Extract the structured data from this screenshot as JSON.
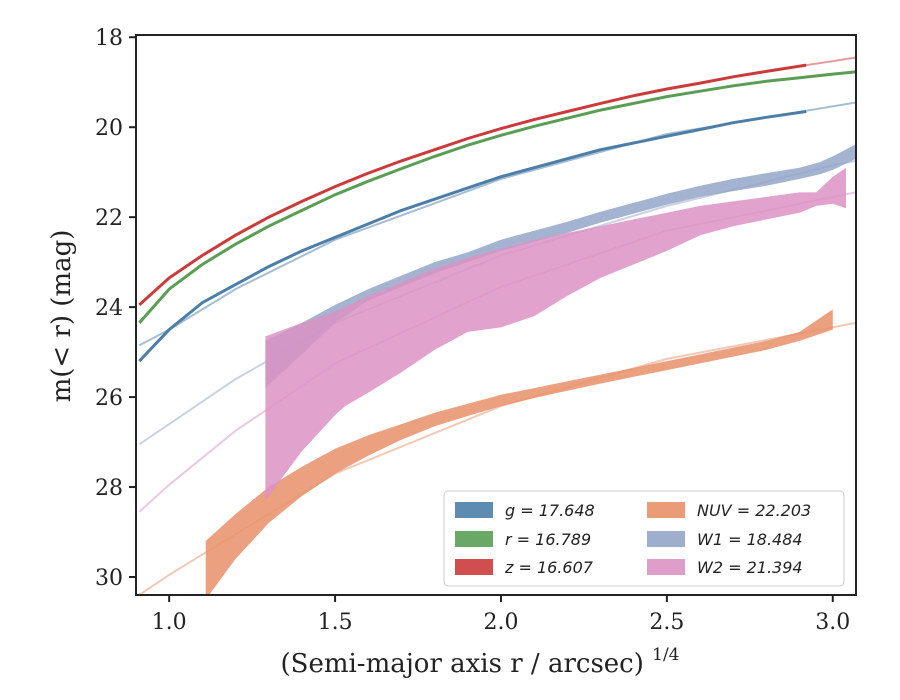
{
  "chart_data": {
    "type": "area",
    "title": "",
    "xlabel": "(Semi-major axis r / arcsec)",
    "xlabel_exponent": "1/4",
    "ylabel": "m(< r) (mag)",
    "xlim": [
      0.9,
      3.07
    ],
    "ylim": [
      30.4,
      17.95
    ],
    "y_inverted": true,
    "grid": false,
    "legend_position": "lower-right",
    "x_ticks": [
      "1.0",
      "1.5",
      "2.0",
      "2.5",
      "3.0"
    ],
    "y_ticks": [
      "18",
      "20",
      "22",
      "24",
      "26",
      "28",
      "30"
    ],
    "legend": [
      {
        "label": "g = 17.648",
        "color": "#4c7ea8"
      },
      {
        "label": "r = 16.789",
        "color": "#5a9e55"
      },
      {
        "label": "z = 16.607",
        "color": "#cc3b3b"
      },
      {
        "label": "NUV = 22.203",
        "color": "#e8916a"
      },
      {
        "label": "W1 = 18.484",
        "color": "#94a6c8"
      },
      {
        "label": "W2 = 21.394",
        "color": "#dc92c4"
      }
    ],
    "series": [
      {
        "name": "g",
        "kind": "line",
        "color": "#4c7ea8",
        "x": [
          0.91,
          1.0,
          1.1,
          1.2,
          1.3,
          1.4,
          1.5,
          1.6,
          1.7,
          1.8,
          1.9,
          2.0,
          2.1,
          2.2,
          2.3,
          2.4,
          2.5,
          2.6,
          2.7,
          2.8,
          2.92
        ],
        "y": [
          25.2,
          24.5,
          23.9,
          23.5,
          23.1,
          22.75,
          22.45,
          22.15,
          21.85,
          21.6,
          21.35,
          21.1,
          20.9,
          20.7,
          20.5,
          20.35,
          20.2,
          20.05,
          19.9,
          19.78,
          19.65
        ],
        "model_x": [
          0.91,
          1.0,
          1.2,
          1.5,
          2.0,
          2.5,
          3.07
        ],
        "model_y": [
          24.85,
          24.5,
          23.6,
          22.5,
          21.15,
          20.15,
          19.45
        ]
      },
      {
        "name": "r",
        "kind": "line",
        "color": "#5a9e55",
        "x": [
          0.91,
          1.0,
          1.1,
          1.2,
          1.3,
          1.4,
          1.5,
          1.6,
          1.7,
          1.8,
          1.9,
          2.0,
          2.1,
          2.2,
          2.3,
          2.4,
          2.5,
          2.6,
          2.7,
          2.8,
          2.9,
          3.0,
          3.07
        ],
        "y": [
          24.35,
          23.6,
          23.05,
          22.6,
          22.2,
          21.85,
          21.5,
          21.2,
          20.92,
          20.65,
          20.4,
          20.18,
          19.98,
          19.8,
          19.62,
          19.47,
          19.32,
          19.2,
          19.08,
          18.98,
          18.9,
          18.82,
          18.77
        ]
      },
      {
        "name": "z",
        "kind": "line",
        "color": "#cc3b3b",
        "x": [
          0.91,
          1.0,
          1.1,
          1.2,
          1.3,
          1.4,
          1.5,
          1.6,
          1.7,
          1.8,
          1.9,
          2.0,
          2.1,
          2.2,
          2.3,
          2.4,
          2.5,
          2.6,
          2.7,
          2.8,
          2.92
        ],
        "y": [
          23.95,
          23.35,
          22.85,
          22.4,
          22.0,
          21.65,
          21.32,
          21.02,
          20.75,
          20.5,
          20.25,
          20.03,
          19.83,
          19.65,
          19.47,
          19.3,
          19.15,
          19.02,
          18.88,
          18.76,
          18.62
        ],
        "model_x": [
          2.92,
          3.0,
          3.07
        ],
        "model_y": [
          18.62,
          18.53,
          18.45
        ]
      },
      {
        "name": "NUV",
        "kind": "band",
        "color": "#e8916a",
        "x": [
          1.11,
          1.2,
          1.3,
          1.4,
          1.5,
          1.6,
          1.7,
          1.8,
          1.9,
          2.0,
          2.1,
          2.2,
          2.3,
          2.4,
          2.5,
          2.6,
          2.7,
          2.8,
          2.9,
          3.0
        ],
        "y_low": [
          29.2,
          28.6,
          28.0,
          27.55,
          27.15,
          26.85,
          26.6,
          26.35,
          26.15,
          25.95,
          25.8,
          25.65,
          25.5,
          25.35,
          25.2,
          25.05,
          24.9,
          24.75,
          24.55,
          24.05
        ],
        "y_high": [
          30.5,
          29.6,
          28.8,
          28.2,
          27.7,
          27.3,
          26.95,
          26.65,
          26.42,
          26.2,
          26.02,
          25.86,
          25.7,
          25.55,
          25.4,
          25.25,
          25.1,
          24.95,
          24.75,
          24.5
        ],
        "model_x": [
          0.91,
          1.0,
          1.2,
          1.5,
          2.0,
          2.5,
          3.07
        ],
        "model_y": [
          30.4,
          29.95,
          29.05,
          27.7,
          26.2,
          25.15,
          24.35
        ]
      },
      {
        "name": "W1",
        "kind": "band",
        "color": "#94a6c8",
        "x": [
          1.29,
          1.4,
          1.5,
          1.6,
          1.7,
          1.8,
          1.9,
          2.0,
          2.1,
          2.2,
          2.3,
          2.4,
          2.5,
          2.6,
          2.7,
          2.8,
          2.9,
          2.96,
          3.0,
          3.07
        ],
        "y_low": [
          24.75,
          24.35,
          23.95,
          23.6,
          23.3,
          23.0,
          22.78,
          22.5,
          22.3,
          22.1,
          21.88,
          21.68,
          21.48,
          21.3,
          21.15,
          21.02,
          20.9,
          20.78,
          20.65,
          20.38
        ],
        "y_high": [
          25.8,
          25.05,
          24.35,
          23.85,
          23.55,
          23.25,
          23.0,
          22.75,
          22.55,
          22.35,
          22.12,
          21.92,
          21.72,
          21.55,
          21.42,
          21.3,
          21.15,
          21.05,
          20.95,
          20.7
        ],
        "model_x": [
          0.91,
          1.0,
          1.2,
          1.5,
          2.0,
          2.5,
          3.0,
          3.07
        ],
        "model_y": [
          27.05,
          26.6,
          25.6,
          24.35,
          22.85,
          21.75,
          20.85,
          20.75
        ]
      },
      {
        "name": "W2",
        "kind": "band",
        "color": "#dc92c4",
        "x": [
          1.29,
          1.4,
          1.5,
          1.53,
          1.6,
          1.7,
          1.8,
          1.9,
          2.0,
          2.1,
          2.2,
          2.3,
          2.4,
          2.5,
          2.6,
          2.7,
          2.8,
          2.9,
          2.95,
          3.0,
          3.04
        ],
        "y_low": [
          24.65,
          24.35,
          24.1,
          24.0,
          23.75,
          23.45,
          23.15,
          22.9,
          22.7,
          22.5,
          22.35,
          22.2,
          22.05,
          21.9,
          21.75,
          21.65,
          21.55,
          21.45,
          21.45,
          21.1,
          20.9
        ],
        "y_high": [
          28.3,
          27.2,
          26.4,
          26.2,
          25.9,
          25.45,
          24.95,
          24.55,
          24.45,
          24.2,
          23.75,
          23.35,
          23.05,
          22.75,
          22.4,
          22.2,
          22.05,
          21.9,
          21.75,
          21.7,
          21.8
        ],
        "model_x": [
          0.91,
          1.0,
          1.2,
          1.5,
          2.0,
          2.5,
          3.0,
          3.07
        ],
        "model_y": [
          28.55,
          27.95,
          26.75,
          25.25,
          23.55,
          22.3,
          21.55,
          21.45
        ]
      }
    ]
  }
}
